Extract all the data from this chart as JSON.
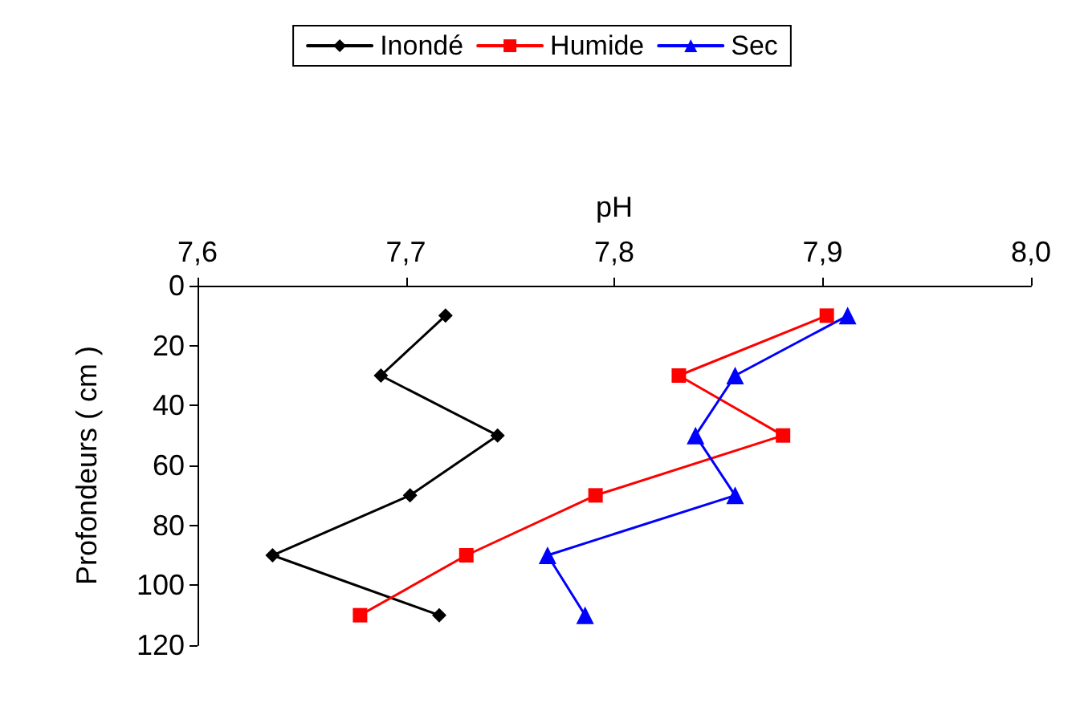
{
  "chart_data": {
    "type": "line",
    "xlabel": "pH",
    "ylabel": "Profondeurs ( cm )",
    "xlim": [
      7.6,
      8.0
    ],
    "ylim": [
      120,
      0
    ],
    "xticks": [
      {
        "value": 7.6,
        "label": "7,6"
      },
      {
        "value": 7.7,
        "label": "7,7"
      },
      {
        "value": 7.8,
        "label": "7,8"
      },
      {
        "value": 7.9,
        "label": "7,9"
      },
      {
        "value": 8.0,
        "label": "8,0"
      }
    ],
    "yticks": [
      0,
      20,
      40,
      60,
      80,
      100,
      120
    ],
    "grid": false,
    "legend": "top",
    "series": [
      {
        "name": "Inondé",
        "color": "#000000",
        "marker": "diamond",
        "x": [
          7.719,
          7.688,
          7.744,
          7.702,
          7.636,
          7.716
        ],
        "values": [
          10,
          30,
          50,
          70,
          90,
          110
        ]
      },
      {
        "name": "Humide",
        "color": "#ff0000",
        "marker": "square",
        "x": [
          7.902,
          7.831,
          7.881,
          7.791,
          7.729,
          7.678
        ],
        "values": [
          10,
          30,
          50,
          70,
          90,
          110
        ]
      },
      {
        "name": "Sec",
        "color": "#0000ff",
        "marker": "triangle",
        "x": [
          7.912,
          7.858,
          7.839,
          7.858,
          7.768,
          7.786
        ],
        "values": [
          10,
          30,
          50,
          70,
          90,
          110
        ]
      }
    ]
  }
}
